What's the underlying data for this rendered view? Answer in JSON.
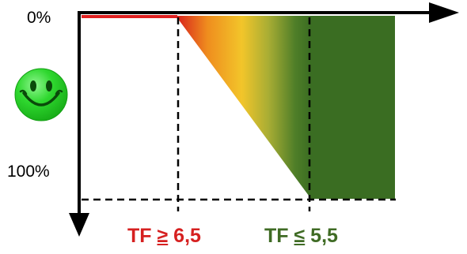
{
  "axis": {
    "top_label": "0%",
    "bottom_label": "100%"
  },
  "thresholds": {
    "left": {
      "prefix": "TF ",
      "symbol": "≥",
      "value": " 6,5",
      "color": "#d62020"
    },
    "right": {
      "prefix": "TF ",
      "symbol": "≤",
      "value": " 5,5",
      "color": "#3f6b24"
    }
  },
  "gradient_colors": [
    "#d9261c",
    "#ef8d1e",
    "#f2c52a",
    "#a8ad34",
    "#4f7e28",
    "#3a6d22"
  ],
  "face": {
    "icon": "smiley-face-icon",
    "color": "#22cc22"
  }
}
